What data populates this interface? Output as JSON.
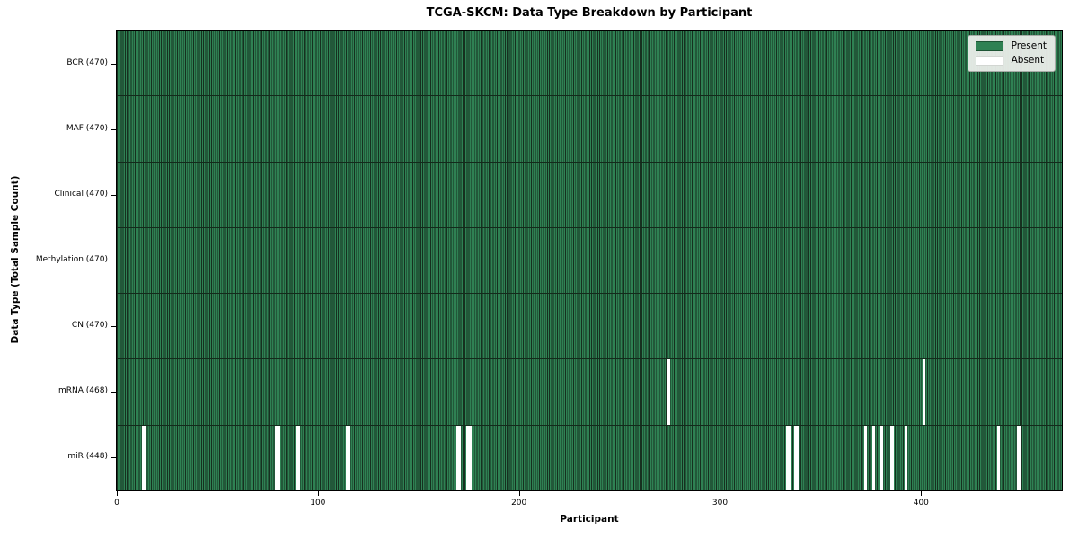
{
  "chart_data": {
    "type": "heatmap",
    "title": "TCGA-SKCM: Data Type Breakdown by Participant",
    "xlabel": "Participant",
    "ylabel": "Data Type (Total Sample Count)",
    "x_ticks": [
      0,
      100,
      200,
      300,
      400
    ],
    "n_participants": 470,
    "rows": [
      {
        "data_type": "BCR",
        "label": "BCR (470)",
        "total": 470,
        "absent_participants": []
      },
      {
        "data_type": "MAF",
        "label": "MAF (470)",
        "total": 470,
        "absent_participants": []
      },
      {
        "data_type": "Clinical",
        "label": "Clinical (470)",
        "total": 470,
        "absent_participants": []
      },
      {
        "data_type": "Methylation",
        "label": "Methylation (470)",
        "total": 470,
        "absent_participants": []
      },
      {
        "data_type": "CN",
        "label": "CN (470)",
        "total": 470,
        "absent_participants": []
      },
      {
        "data_type": "mRNA",
        "label": "mRNA (468)",
        "total": 468,
        "absent_participants": [
          274,
          401
        ]
      },
      {
        "data_type": "miR",
        "label": "miR (448)",
        "total": 448,
        "absent_participants": [
          13,
          79,
          80,
          89,
          90,
          114,
          115,
          169,
          170,
          174,
          175,
          333,
          334,
          337,
          338,
          372,
          376,
          380,
          385,
          392,
          438,
          448
        ]
      }
    ],
    "legend": [
      {
        "label": "Present",
        "color": "#2f8153"
      },
      {
        "label": "Absent",
        "color": "#ffffff"
      }
    ],
    "colors": {
      "present": "#2f8153",
      "cell_edge": "#16301f",
      "absent": "#ffffff",
      "present_swatch_edge": "#1d5434",
      "absent_swatch_edge": "#d2d6d2"
    },
    "legend_position": "upper right",
    "grid": false
  }
}
